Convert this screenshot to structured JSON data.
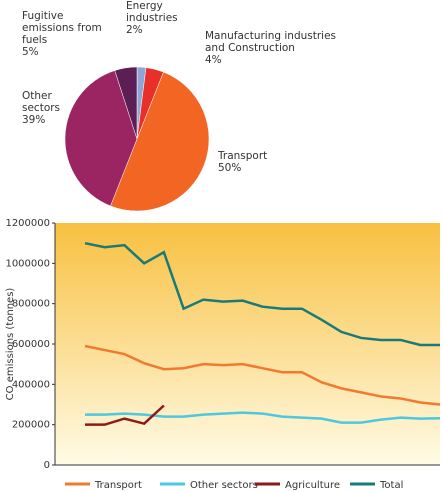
{
  "chart_data": [
    {
      "type": "pie",
      "categories": [
        "Energy industries",
        "Manufacturing industries and Construction",
        "Transport",
        "Other sectors",
        "Fugitive emissions from fuels"
      ],
      "values": [
        2,
        4,
        50,
        39,
        5
      ],
      "value_labels": [
        "2%",
        "4%",
        "50%",
        "39%",
        "5%"
      ],
      "colors": [
        "#8ea6d6",
        "#e8302a",
        "#f26522",
        "#9b2463",
        "#5b1f55"
      ]
    },
    {
      "type": "line",
      "ylabel": "CO emissions (tonnes)",
      "categories": [
        null,
        null,
        null,
        null,
        null,
        null,
        null,
        null,
        null,
        null,
        null,
        null,
        null,
        null,
        null,
        null,
        null,
        null,
        null
      ],
      "ylim": [
        0,
        1200000
      ],
      "yticks": [
        0,
        200000,
        400000,
        600000,
        800000,
        1000000,
        1200000
      ],
      "series": [
        {
          "name": "Transport",
          "color": "#f07a30",
          "values": [
            590000,
            570000,
            550000,
            505000,
            475000,
            480000,
            500000,
            495000,
            500000,
            480000,
            460000,
            460000,
            410000,
            380000,
            360000,
            340000,
            330000,
            310000,
            300000
          ]
        },
        {
          "name": "Other sectors",
          "color": "#4cc8e0",
          "values": [
            250000,
            250000,
            255000,
            250000,
            240000,
            240000,
            250000,
            255000,
            260000,
            255000,
            240000,
            235000,
            230000,
            210000,
            210000,
            225000,
            235000,
            230000,
            232000
          ]
        },
        {
          "name": "Agriculture",
          "color": "#8b1a1a",
          "values": [
            200000,
            200000,
            230000,
            205000,
            295000,
            null,
            null,
            null,
            null,
            null,
            null,
            null,
            null,
            null,
            null,
            null,
            null,
            null,
            null
          ]
        },
        {
          "name": "Total",
          "color": "#1a7a78",
          "values": [
            1100000,
            1080000,
            1090000,
            1000000,
            1055000,
            775000,
            820000,
            810000,
            815000,
            785000,
            775000,
            775000,
            720000,
            660000,
            630000,
            620000,
            620000,
            595000,
            595000
          ]
        }
      ]
    }
  ]
}
